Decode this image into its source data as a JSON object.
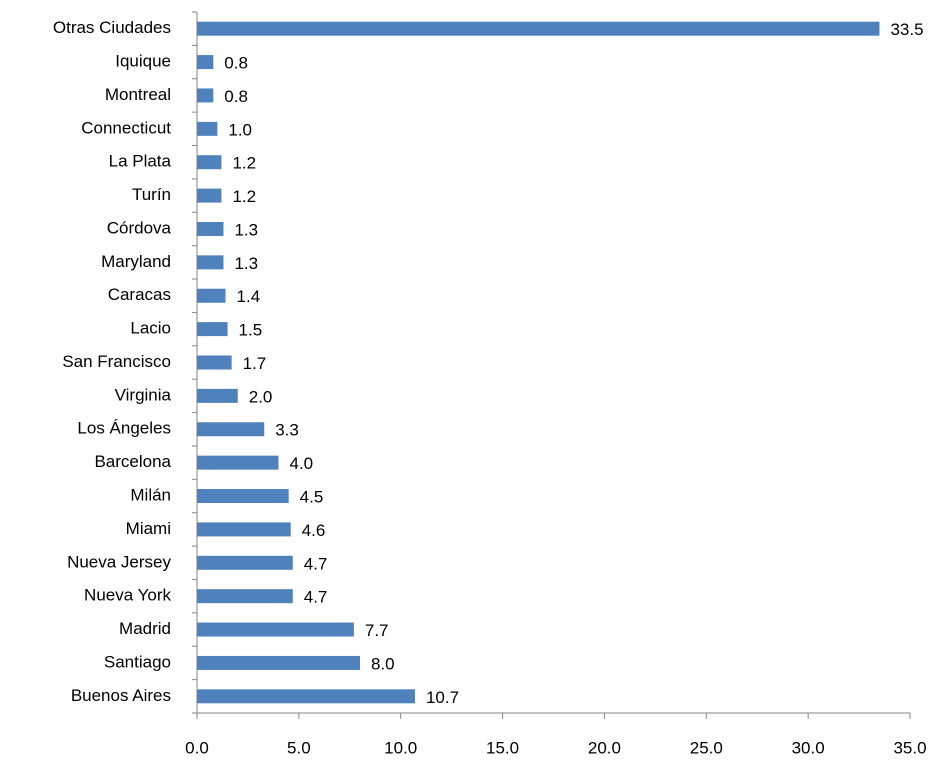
{
  "chart_data": {
    "type": "hbar",
    "color": "#4f81bd",
    "categories": [
      "Otras Ciudades",
      "Iquique",
      "Montreal",
      "Connecticut",
      "La Plata",
      "Turín",
      "Córdova",
      "Maryland",
      "Caracas",
      "Lacio",
      "San Francisco",
      "Virginia",
      "Los Ángeles",
      "Barcelona",
      "Milán",
      "Miami",
      "Nueva Jersey",
      "Nueva York",
      "Madrid",
      "Santiago",
      "Buenos Aires"
    ],
    "values": [
      33.5,
      0.8,
      0.8,
      1.0,
      1.2,
      1.2,
      1.3,
      1.3,
      1.4,
      1.5,
      1.7,
      2.0,
      3.3,
      4.0,
      4.5,
      4.6,
      4.7,
      4.7,
      7.7,
      8.0,
      10.7
    ],
    "value_labels": [
      "33.5",
      "0.8",
      "0.8",
      "1.0",
      "1.2",
      "1.2",
      "1.3",
      "1.3",
      "1.4",
      "1.5",
      "1.7",
      "2.0",
      "3.3",
      "4.0",
      "4.5",
      "4.6",
      "4.7",
      "4.7",
      "7.7",
      "8.0",
      "10.7"
    ],
    "xlim": [
      0,
      35
    ],
    "xticks": [
      {
        "value": 0,
        "label": "0.0"
      },
      {
        "value": 5,
        "label": "5.0"
      },
      {
        "value": 10,
        "label": "10.0"
      },
      {
        "value": 15,
        "label": "15.0"
      },
      {
        "value": 20,
        "label": "20.0"
      },
      {
        "value": 25,
        "label": "25.0"
      },
      {
        "value": 30,
        "label": "30.0"
      },
      {
        "value": 35,
        "label": "35.0"
      }
    ]
  }
}
